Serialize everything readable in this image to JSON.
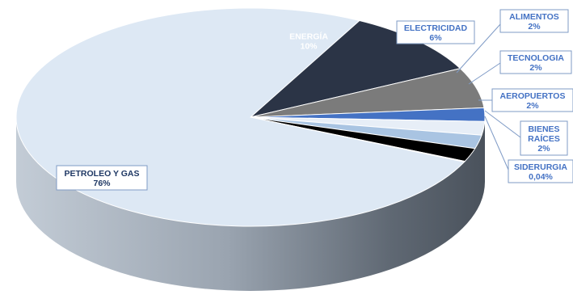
{
  "chart_data": {
    "type": "pie",
    "style": "3d",
    "legend": "none",
    "slices": [
      {
        "label": "PETROLEO Y GAS",
        "display": "76%",
        "value": 76,
        "color": "#dde8f4",
        "label_color": "#1f3864"
      },
      {
        "label": "ENERGÍA",
        "display": "10%",
        "value": 10,
        "color": "#2b3446",
        "label_color": "#ffffff"
      },
      {
        "label": "ELECTRICIDAD",
        "display": "6%",
        "value": 6,
        "color": "#7b7b7b",
        "label_color": "#4472c4"
      },
      {
        "label": "ALIMENTOS",
        "display": "2%",
        "value": 2,
        "color": "#4472c4",
        "label_color": "#4472c4"
      },
      {
        "label": "TECNOLOGIA",
        "display": "2%",
        "value": 2,
        "color": "#e7eef7",
        "label_color": "#4472c4"
      },
      {
        "label": "AEROPUERTOS",
        "display": "2%",
        "value": 2,
        "color": "#a9c4e2",
        "label_color": "#4472c4"
      },
      {
        "label": "BIENES RAÍCES",
        "display": "2%",
        "value": 2,
        "color": "#000000",
        "label_color": "#4472c4"
      },
      {
        "label": "SIDERURGIA",
        "display": "0,04%",
        "value": 0.04,
        "color": "#6f8fbf",
        "label_color": "#4472c4"
      }
    ]
  }
}
